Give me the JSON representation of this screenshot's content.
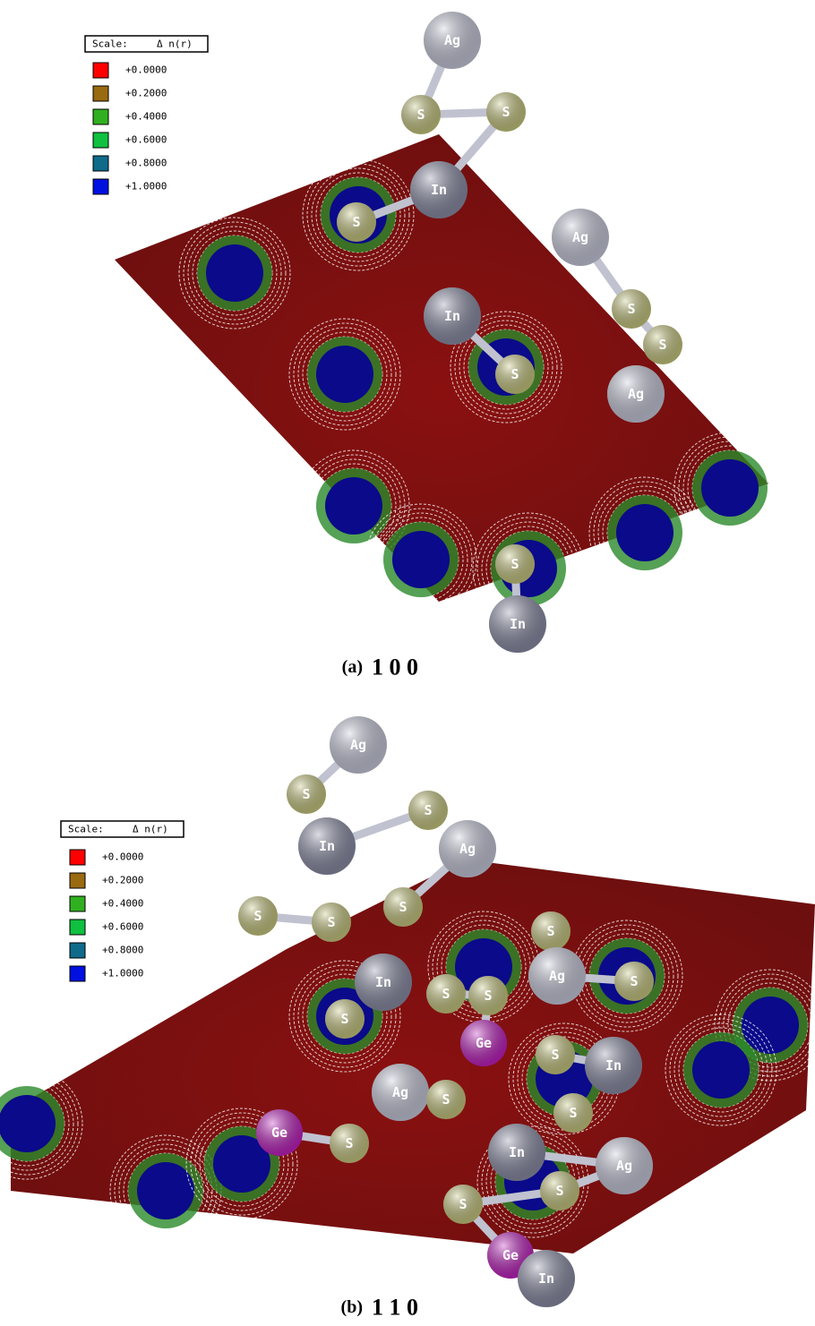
{
  "panels": [
    {
      "caption_label": "(a)",
      "caption": "1 0 0",
      "scale": {
        "title": "Scale:",
        "symbol": "Δ n(r)",
        "entries": [
          {
            "label": "+0.0000",
            "color": "#ff0000"
          },
          {
            "label": "+0.2000",
            "color": "#9a6a10"
          },
          {
            "label": "+0.4000",
            "color": "#30b020"
          },
          {
            "label": "+0.6000",
            "color": "#10c040"
          },
          {
            "label": "+0.8000",
            "color": "#106a8a"
          },
          {
            "label": "+1.0000",
            "color": "#0010e0"
          }
        ]
      },
      "atoms": [
        "Ag",
        "S",
        "S",
        "In",
        "S",
        "Ag",
        "S",
        "S",
        "In",
        "S",
        "Ag",
        "S",
        "In"
      ]
    },
    {
      "caption_label": "(b)",
      "caption": "1 1 0",
      "scale": {
        "title": "Scale:",
        "symbol": "Δ n(r)",
        "entries": [
          {
            "label": "+0.0000",
            "color": "#ff0000"
          },
          {
            "label": "+0.2000",
            "color": "#9a6a10"
          },
          {
            "label": "+0.4000",
            "color": "#30b020"
          },
          {
            "label": "+0.6000",
            "color": "#10c040"
          },
          {
            "label": "+0.8000",
            "color": "#106a8a"
          },
          {
            "label": "+1.0000",
            "color": "#0010e0"
          }
        ]
      },
      "atoms": [
        "Ag",
        "S",
        "S",
        "In",
        "Ag",
        "S",
        "S",
        "S",
        "S",
        "In",
        "Ag",
        "S",
        "S",
        "S",
        "Ge",
        "S",
        "S",
        "In",
        "Ag",
        "S",
        "S",
        "Ge",
        "S",
        "In",
        "Ag",
        "S",
        "S",
        "Ge",
        "In"
      ]
    }
  ]
}
